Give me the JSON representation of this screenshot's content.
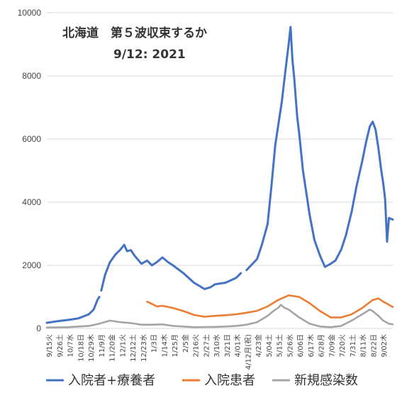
{
  "chart_data": {
    "type": "line",
    "title": "北海道　第５波収束するか",
    "subtitle": "9/12: 2021",
    "xlabel": "",
    "ylabel": "",
    "ylim": [
      0,
      10000
    ],
    "yticks": [
      "0",
      "2000",
      "4000",
      "6000",
      "8000",
      "10000"
    ],
    "grid": true,
    "legend": "bottom",
    "x_start": "2020-09-15",
    "x_end": "2021-09-12",
    "x_tick_labels": [
      "9/15火",
      "9/26土",
      "10/7水",
      "10/18日",
      "10/29木",
      "11/9月",
      "11/20金",
      "12/1火",
      "12/12土",
      "12/23水",
      "1/3日",
      "1/14木",
      "1/25月",
      "2/5金",
      "2/16火",
      "2/27土",
      "3/10水",
      "3/21日",
      "4/01木",
      "4/12月(祝)",
      "4/23金",
      "5/04土",
      "5/15土",
      "5/26水",
      "6/06日",
      "6/17木",
      "6/28月",
      "7/09金",
      "7/20火",
      "7/31土",
      "8/11水",
      "8/22日",
      "9/02木"
    ],
    "series": [
      {
        "name": "入院者+療養者",
        "color": "#4472C4",
        "segments": [
          [
            [
              "2020-09-15",
              180
            ],
            [
              "2020-09-26",
              230
            ],
            [
              "2020-10-07",
              270
            ],
            [
              "2020-10-18",
              320
            ],
            [
              "2020-10-29",
              450
            ],
            [
              "2020-11-03",
              600
            ],
            [
              "2020-11-07",
              900
            ],
            [
              "2020-11-09",
              1000
            ]
          ],
          [
            [
              "2020-11-11",
              1200
            ],
            [
              "2020-11-15",
              1700
            ],
            [
              "2020-11-20",
              2100
            ],
            [
              "2020-11-26",
              2350
            ],
            [
              "2020-12-01",
              2500
            ],
            [
              "2020-12-05",
              2650
            ],
            [
              "2020-12-08",
              2450
            ],
            [
              "2020-12-12",
              2480
            ],
            [
              "2020-12-16",
              2300
            ],
            [
              "2020-12-23",
              2050
            ],
            [
              "2020-12-29",
              2150
            ],
            [
              "2021-01-03",
              2000
            ],
            [
              "2021-01-08",
              2100
            ],
            [
              "2021-01-14",
              2250
            ],
            [
              "2021-01-20",
              2100
            ],
            [
              "2021-01-25",
              2000
            ],
            [
              "2021-02-05",
              1750
            ],
            [
              "2021-02-16",
              1450
            ],
            [
              "2021-02-27",
              1250
            ],
            [
              "2021-03-05",
              1300
            ],
            [
              "2021-03-10",
              1400
            ],
            [
              "2021-03-21",
              1450
            ],
            [
              "2021-04-01",
              1600
            ],
            [
              "2021-04-06",
              1750
            ]
          ],
          [
            [
              "2021-04-12",
              1850
            ],
            [
              "2021-04-23",
              2200
            ],
            [
              "2021-04-28",
              2650
            ],
            [
              "2021-05-04",
              3300
            ],
            [
              "2021-05-08",
              4500
            ],
            [
              "2021-05-12",
              5800
            ],
            [
              "2021-05-15",
              6400
            ],
            [
              "2021-05-19",
              7200
            ],
            [
              "2021-05-22",
              8000
            ],
            [
              "2021-05-26",
              9000
            ],
            [
              "2021-05-28",
              9550
            ],
            [
              "2021-05-30",
              8500
            ],
            [
              "2021-06-01",
              7900
            ],
            [
              "2021-06-04",
              6700
            ],
            [
              "2021-06-06",
              6200
            ],
            [
              "2021-06-10",
              5000
            ],
            [
              "2021-06-14",
              4200
            ],
            [
              "2021-06-17",
              3600
            ],
            [
              "2021-06-22",
              2800
            ],
            [
              "2021-06-28",
              2300
            ],
            [
              "2021-07-03",
              1950
            ],
            [
              "2021-07-09",
              2050
            ],
            [
              "2021-07-14",
              2150
            ],
            [
              "2021-07-20",
              2500
            ],
            [
              "2021-07-25",
              2950
            ],
            [
              "2021-07-31",
              3700
            ],
            [
              "2021-08-05",
              4500
            ],
            [
              "2021-08-11",
              5300
            ],
            [
              "2021-08-15",
              5900
            ],
            [
              "2021-08-19",
              6400
            ],
            [
              "2021-08-22",
              6550
            ],
            [
              "2021-08-25",
              6300
            ],
            [
              "2021-08-28",
              5700
            ],
            [
              "2021-08-31",
              5000
            ],
            [
              "2021-09-02",
              4600
            ],
            [
              "2021-09-04",
              4100
            ],
            [
              "2021-09-06",
              2750
            ],
            [
              "2021-09-08",
              3500
            ],
            [
              "2021-09-12",
              3450
            ]
          ]
        ]
      },
      {
        "name": "入院患者",
        "color": "#ED7D31",
        "segments": [
          [
            [
              "2020-12-29",
              850
            ],
            [
              "2021-01-03",
              780
            ],
            [
              "2021-01-08",
              700
            ],
            [
              "2021-01-14",
              720
            ],
            [
              "2021-01-25",
              650
            ],
            [
              "2021-02-05",
              550
            ],
            [
              "2021-02-16",
              430
            ],
            [
              "2021-02-27",
              370
            ],
            [
              "2021-03-10",
              400
            ],
            [
              "2021-03-21",
              420
            ],
            [
              "2021-04-01",
              450
            ],
            [
              "2021-04-12",
              500
            ],
            [
              "2021-04-23",
              560
            ],
            [
              "2021-05-04",
              700
            ],
            [
              "2021-05-15",
              900
            ],
            [
              "2021-05-26",
              1050
            ],
            [
              "2021-06-06",
              1000
            ],
            [
              "2021-06-17",
              800
            ],
            [
              "2021-06-28",
              550
            ],
            [
              "2021-07-09",
              350
            ],
            [
              "2021-07-20",
              350
            ],
            [
              "2021-07-31",
              450
            ],
            [
              "2021-08-11",
              650
            ],
            [
              "2021-08-22",
              900
            ],
            [
              "2021-08-28",
              950
            ],
            [
              "2021-09-02",
              850
            ],
            [
              "2021-09-08",
              750
            ],
            [
              "2021-09-12",
              680
            ]
          ]
        ]
      },
      {
        "name": "新規感染数",
        "color": "#A5A5A5",
        "segments": [
          [
            [
              "2020-09-15",
              30
            ],
            [
              "2020-10-07",
              40
            ],
            [
              "2020-10-29",
              80
            ],
            [
              "2020-11-09",
              150
            ],
            [
              "2020-11-20",
              250
            ],
            [
              "2020-12-01",
              200
            ],
            [
              "2020-12-12",
              170
            ],
            [
              "2020-12-23",
              120
            ],
            [
              "2021-01-03",
              120
            ],
            [
              "2021-01-14",
              130
            ],
            [
              "2021-01-25",
              80
            ],
            [
              "2021-02-05",
              60
            ],
            [
              "2021-02-16",
              40
            ],
            [
              "2021-02-27",
              45
            ],
            [
              "2021-03-10",
              50
            ],
            [
              "2021-03-21",
              60
            ],
            [
              "2021-04-01",
              80
            ],
            [
              "2021-04-12",
              120
            ],
            [
              "2021-04-23",
              200
            ],
            [
              "2021-05-04",
              400
            ],
            [
              "2021-05-10",
              550
            ],
            [
              "2021-05-15",
              650
            ],
            [
              "2021-05-18",
              750
            ],
            [
              "2021-05-22",
              650
            ],
            [
              "2021-05-26",
              600
            ],
            [
              "2021-06-06",
              350
            ],
            [
              "2021-06-17",
              150
            ],
            [
              "2021-06-28",
              60
            ],
            [
              "2021-07-09",
              40
            ],
            [
              "2021-07-20",
              80
            ],
            [
              "2021-07-31",
              250
            ],
            [
              "2021-08-11",
              450
            ],
            [
              "2021-08-19",
              600
            ],
            [
              "2021-08-22",
              550
            ],
            [
              "2021-08-28",
              400
            ],
            [
              "2021-09-02",
              250
            ],
            [
              "2021-09-08",
              150
            ],
            [
              "2021-09-12",
              130
            ]
          ]
        ]
      }
    ]
  }
}
